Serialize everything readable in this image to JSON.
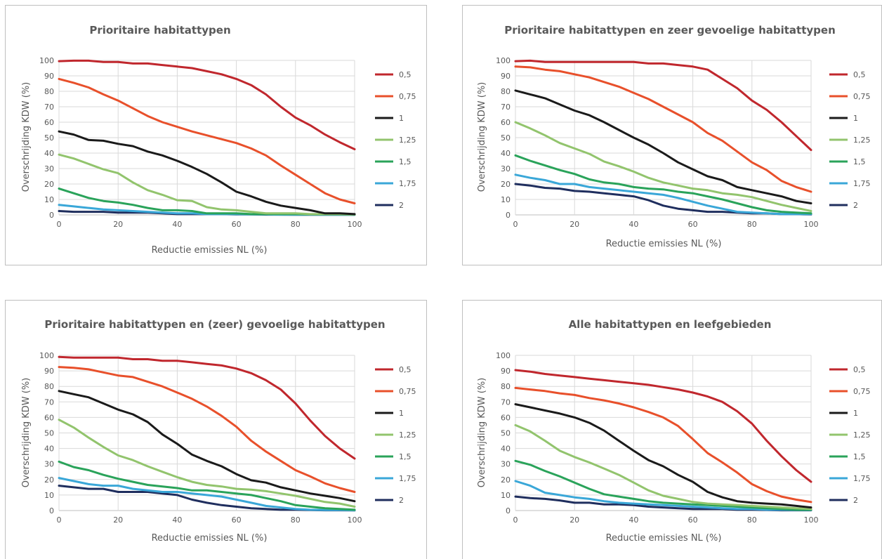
{
  "chart_data": [
    {
      "type": "line",
      "title": "Prioritaire habitattypen",
      "xlabel": "Reductie emissies NL (%)",
      "ylabel": "Overschrijding KDW (%)",
      "xlim": [
        0,
        100
      ],
      "ylim": [
        0,
        100
      ],
      "x_ticks": [
        "0",
        "20",
        "40",
        "60",
        "80",
        "100"
      ],
      "y_ticks": [
        "0",
        "10",
        "20",
        "30",
        "40",
        "50",
        "60",
        "70",
        "80",
        "90",
        "100"
      ],
      "grid": true,
      "legend": "right",
      "x": [
        0,
        5,
        10,
        15,
        20,
        25,
        30,
        35,
        40,
        45,
        50,
        55,
        60,
        65,
        70,
        75,
        80,
        85,
        90,
        95,
        100
      ],
      "series": [
        {
          "name": "0,5",
          "color": "#c0272d",
          "values": [
            99.5,
            99.8,
            99.8,
            99,
            99,
            98,
            98,
            97,
            96,
            95,
            93,
            91,
            88,
            84,
            78,
            70,
            63,
            58,
            52,
            47,
            42.5
          ]
        },
        {
          "name": "0,75",
          "color": "#e8502b",
          "values": [
            88,
            85.5,
            82.5,
            78,
            74,
            69,
            64,
            60,
            57,
            54,
            51.5,
            49,
            46.5,
            43,
            38.5,
            32,
            26,
            20,
            14,
            10,
            7.5
          ]
        },
        {
          "name": "1",
          "color": "#1a1a1a",
          "values": [
            54,
            52,
            48.5,
            48,
            46,
            44.5,
            41,
            38.5,
            35,
            31,
            26.5,
            21,
            15,
            12,
            8.5,
            6,
            4.5,
            3,
            1,
            1,
            0.5
          ]
        },
        {
          "name": "1,25",
          "color": "#92c46d",
          "values": [
            39,
            36.5,
            33,
            29.5,
            27,
            21,
            16,
            13,
            9.5,
            9,
            5,
            3.5,
            3,
            2,
            1,
            1,
            1,
            0.5,
            0.5,
            0.5,
            0.3
          ]
        },
        {
          "name": "1,5",
          "color": "#2aa35a",
          "values": [
            17,
            14,
            11,
            9,
            8,
            6.5,
            4.5,
            3,
            3,
            2.5,
            1,
            1,
            1,
            0.5,
            0.5,
            0.5,
            0.5,
            0.3,
            0.3,
            0.3,
            0.2
          ]
        },
        {
          "name": "1,75",
          "color": "#3aa7d8",
          "values": [
            6.5,
            5.5,
            4.5,
            3.5,
            3,
            2.5,
            2,
            1.5,
            1,
            1,
            0.5,
            0.5,
            0.5,
            0.3,
            0.3,
            0.2,
            0.2,
            0.2,
            0.1,
            0.1,
            0.1
          ]
        },
        {
          "name": "2",
          "color": "#1f2e5e",
          "values": [
            2.5,
            2,
            2,
            2,
            1.5,
            1.5,
            1.5,
            1,
            0.5,
            0.5,
            0.5,
            0.5,
            0.3,
            0.3,
            0.2,
            0.2,
            0.1,
            0.1,
            0.1,
            0.1,
            0.1
          ]
        }
      ]
    },
    {
      "type": "line",
      "title": "Prioritaire habitattypen en zeer gevoelige habitattypen",
      "xlabel": "Reductie emissies NL (%)",
      "ylabel": "Overschrijding KDW (%)",
      "xlim": [
        0,
        100
      ],
      "ylim": [
        0,
        100
      ],
      "x_ticks": [
        "0",
        "20",
        "40",
        "60",
        "80",
        "100"
      ],
      "y_ticks": [
        "0",
        "10",
        "20",
        "30",
        "40",
        "50",
        "60",
        "70",
        "80",
        "90",
        "100"
      ],
      "grid": true,
      "legend": "right",
      "x": [
        0,
        5,
        10,
        15,
        20,
        25,
        30,
        35,
        40,
        45,
        50,
        55,
        60,
        65,
        70,
        75,
        80,
        85,
        90,
        95,
        100
      ],
      "series": [
        {
          "name": "0,5",
          "color": "#c0272d",
          "values": [
            99.5,
            99.8,
            99,
            99,
            99,
            99,
            99,
            99,
            99,
            98,
            98,
            97,
            96,
            94,
            88,
            82,
            74,
            68,
            60,
            51,
            42
          ]
        },
        {
          "name": "0,75",
          "color": "#e8502b",
          "values": [
            96,
            95.5,
            94,
            93,
            91,
            89,
            86,
            83,
            79,
            75,
            70,
            65,
            60,
            53,
            48,
            41,
            34,
            29,
            22,
            18,
            15
          ]
        },
        {
          "name": "1",
          "color": "#1a1a1a",
          "values": [
            80.5,
            78,
            75.5,
            71.5,
            67.5,
            64.5,
            60,
            55,
            50,
            45.5,
            40,
            34,
            29.5,
            25,
            22.5,
            18,
            16,
            14,
            12,
            9,
            7.5
          ]
        },
        {
          "name": "1,25",
          "color": "#92c46d",
          "values": [
            60,
            56,
            51.5,
            46.5,
            43,
            39.5,
            34.5,
            31.5,
            28,
            24,
            21,
            19,
            17,
            16,
            14,
            13,
            11.5,
            9,
            6.5,
            4.5,
            2.5
          ]
        },
        {
          "name": "1,5",
          "color": "#2aa35a",
          "values": [
            38.5,
            35,
            32,
            29,
            26.5,
            23,
            21,
            20,
            18,
            17,
            16.5,
            15,
            14,
            12,
            10,
            7.5,
            5,
            3,
            2,
            1.5,
            1
          ]
        },
        {
          "name": "1,75",
          "color": "#3aa7d8",
          "values": [
            26,
            24,
            22.5,
            20,
            20,
            18,
            17,
            16,
            15,
            14,
            13,
            11,
            8.5,
            6,
            4,
            2,
            1.5,
            1,
            0.5,
            0.5,
            0.5
          ]
        },
        {
          "name": "2",
          "color": "#1f2e5e",
          "values": [
            20,
            19,
            17.5,
            17,
            15.5,
            15,
            14,
            13,
            12,
            9.5,
            6,
            4,
            3,
            2,
            2,
            1.5,
            1,
            1,
            0.5,
            0.5,
            0.3
          ]
        }
      ]
    },
    {
      "type": "line",
      "title": "Prioritaire habitattypen en (zeer) gevoelige habitattypen",
      "xlabel": "Reductie emissies NL (%)",
      "ylabel": "Overschrijding KDW (%)",
      "xlim": [
        0,
        100
      ],
      "ylim": [
        0,
        100
      ],
      "x_ticks": [
        "0",
        "20",
        "40",
        "60",
        "80",
        "100"
      ],
      "y_ticks": [
        "0",
        "10",
        "20",
        "30",
        "40",
        "50",
        "60",
        "70",
        "80",
        "90",
        "100"
      ],
      "grid": true,
      "legend": "right",
      "x": [
        0,
        5,
        10,
        15,
        20,
        25,
        30,
        35,
        40,
        45,
        50,
        55,
        60,
        65,
        70,
        75,
        80,
        85,
        90,
        95,
        100
      ],
      "series": [
        {
          "name": "0,5",
          "color": "#c0272d",
          "values": [
            99,
            98.5,
            98.5,
            98.5,
            98.5,
            97.5,
            97.5,
            96.5,
            96.5,
            95.5,
            94.5,
            93.5,
            91.5,
            88.5,
            84,
            78,
            69,
            58,
            48,
            40,
            33.5
          ]
        },
        {
          "name": "0,75",
          "color": "#e8502b",
          "values": [
            92.5,
            92,
            91,
            89,
            87,
            86,
            83,
            80,
            76,
            72,
            67,
            61,
            54,
            45,
            38,
            32,
            26,
            22,
            17.5,
            14.5,
            12
          ]
        },
        {
          "name": "1",
          "color": "#1a1a1a",
          "values": [
            77,
            75,
            73,
            69,
            65,
            62,
            57,
            49,
            43,
            36,
            32,
            28.5,
            23.5,
            19.5,
            18,
            15,
            13,
            11,
            9.5,
            8,
            6
          ]
        },
        {
          "name": "1,25",
          "color": "#92c46d",
          "values": [
            58.5,
            53.5,
            47,
            41,
            35.5,
            32.5,
            28.5,
            25,
            21.5,
            18.5,
            16.5,
            15.5,
            14,
            13.5,
            12.5,
            11,
            9.5,
            7.5,
            5.5,
            4.5,
            2.5
          ]
        },
        {
          "name": "1,5",
          "color": "#2aa35a",
          "values": [
            31.5,
            28,
            26,
            23,
            20.5,
            18.5,
            16.5,
            15.5,
            14.5,
            13,
            13,
            12,
            11,
            10,
            8,
            6,
            3.5,
            2.5,
            1.5,
            1,
            0.5
          ]
        },
        {
          "name": "1,75",
          "color": "#3aa7d8",
          "values": [
            21,
            19,
            17,
            16,
            16,
            14,
            13,
            12,
            12,
            11,
            10,
            9,
            7,
            5,
            3,
            2,
            1,
            0.5,
            0.3,
            0.3,
            0.2
          ]
        },
        {
          "name": "2",
          "color": "#1f2e5e",
          "values": [
            16,
            15,
            14,
            14,
            12,
            12,
            12,
            11,
            10,
            7,
            5,
            3.5,
            2.5,
            1.5,
            1,
            0.5,
            0.5,
            0.3,
            0.2,
            0.2,
            0.1
          ]
        }
      ]
    },
    {
      "type": "line",
      "title": "Alle habitattypen en leefgebieden",
      "xlabel": "Reductie emissies NL (%)",
      "ylabel": "Overschrijding KDW (%)",
      "xlim": [
        0,
        100
      ],
      "ylim": [
        0,
        100
      ],
      "x_ticks": [
        "0",
        "20",
        "40",
        "60",
        "80",
        "100"
      ],
      "y_ticks": [
        "0",
        "10",
        "20",
        "30",
        "40",
        "50",
        "60",
        "70",
        "80",
        "90",
        "100"
      ],
      "grid": true,
      "legend": "right",
      "x": [
        0,
        5,
        10,
        15,
        20,
        25,
        30,
        35,
        40,
        45,
        50,
        55,
        60,
        65,
        70,
        75,
        80,
        85,
        90,
        95,
        100
      ],
      "series": [
        {
          "name": "0,5",
          "color": "#c0272d",
          "values": [
            90.5,
            89.5,
            88,
            87,
            86,
            85,
            84,
            83,
            82,
            81,
            79.5,
            78,
            76,
            73.5,
            70,
            64,
            56,
            45,
            35,
            26,
            18.5
          ]
        },
        {
          "name": "0,75",
          "color": "#e8502b",
          "values": [
            79,
            78,
            77,
            75.5,
            74.5,
            72.5,
            71,
            69,
            66.5,
            63.5,
            60,
            54.5,
            46,
            37,
            31,
            24.5,
            17,
            12.5,
            9,
            7,
            5.5
          ]
        },
        {
          "name": "1",
          "color": "#1a1a1a",
          "values": [
            68.5,
            66.5,
            64.5,
            62.5,
            60,
            56.5,
            51.5,
            45,
            38.5,
            32.5,
            28.5,
            23,
            18.5,
            12,
            8.5,
            6,
            5,
            4.5,
            4,
            3,
            2
          ]
        },
        {
          "name": "1,25",
          "color": "#92c46d",
          "values": [
            55,
            51,
            45,
            38.5,
            34.5,
            31,
            27,
            23,
            18,
            13,
            9.5,
            7.5,
            5.5,
            4.5,
            4,
            3.5,
            3,
            2.5,
            2,
            1.5,
            1
          ]
        },
        {
          "name": "1,5",
          "color": "#2aa35a",
          "values": [
            32,
            29.5,
            25.5,
            22,
            18,
            14,
            10.5,
            9,
            7.5,
            6,
            5,
            4.5,
            4,
            3.5,
            3,
            2.5,
            2,
            1.5,
            1,
            0.5,
            0.5
          ]
        },
        {
          "name": "1,75",
          "color": "#3aa7d8",
          "values": [
            19,
            16,
            11.5,
            10,
            8.5,
            7.5,
            6,
            5,
            4.5,
            4,
            3.5,
            3,
            2.5,
            2,
            1.5,
            1,
            1,
            0.5,
            0.5,
            0.3,
            0.3
          ]
        },
        {
          "name": "2",
          "color": "#1f2e5e",
          "values": [
            9,
            8,
            7.5,
            6.5,
            5,
            5,
            4,
            4,
            3.5,
            2.5,
            2,
            1.5,
            1,
            1,
            1,
            0.5,
            0.5,
            0.3,
            0.2,
            0.2,
            0.2
          ]
        }
      ]
    }
  ]
}
